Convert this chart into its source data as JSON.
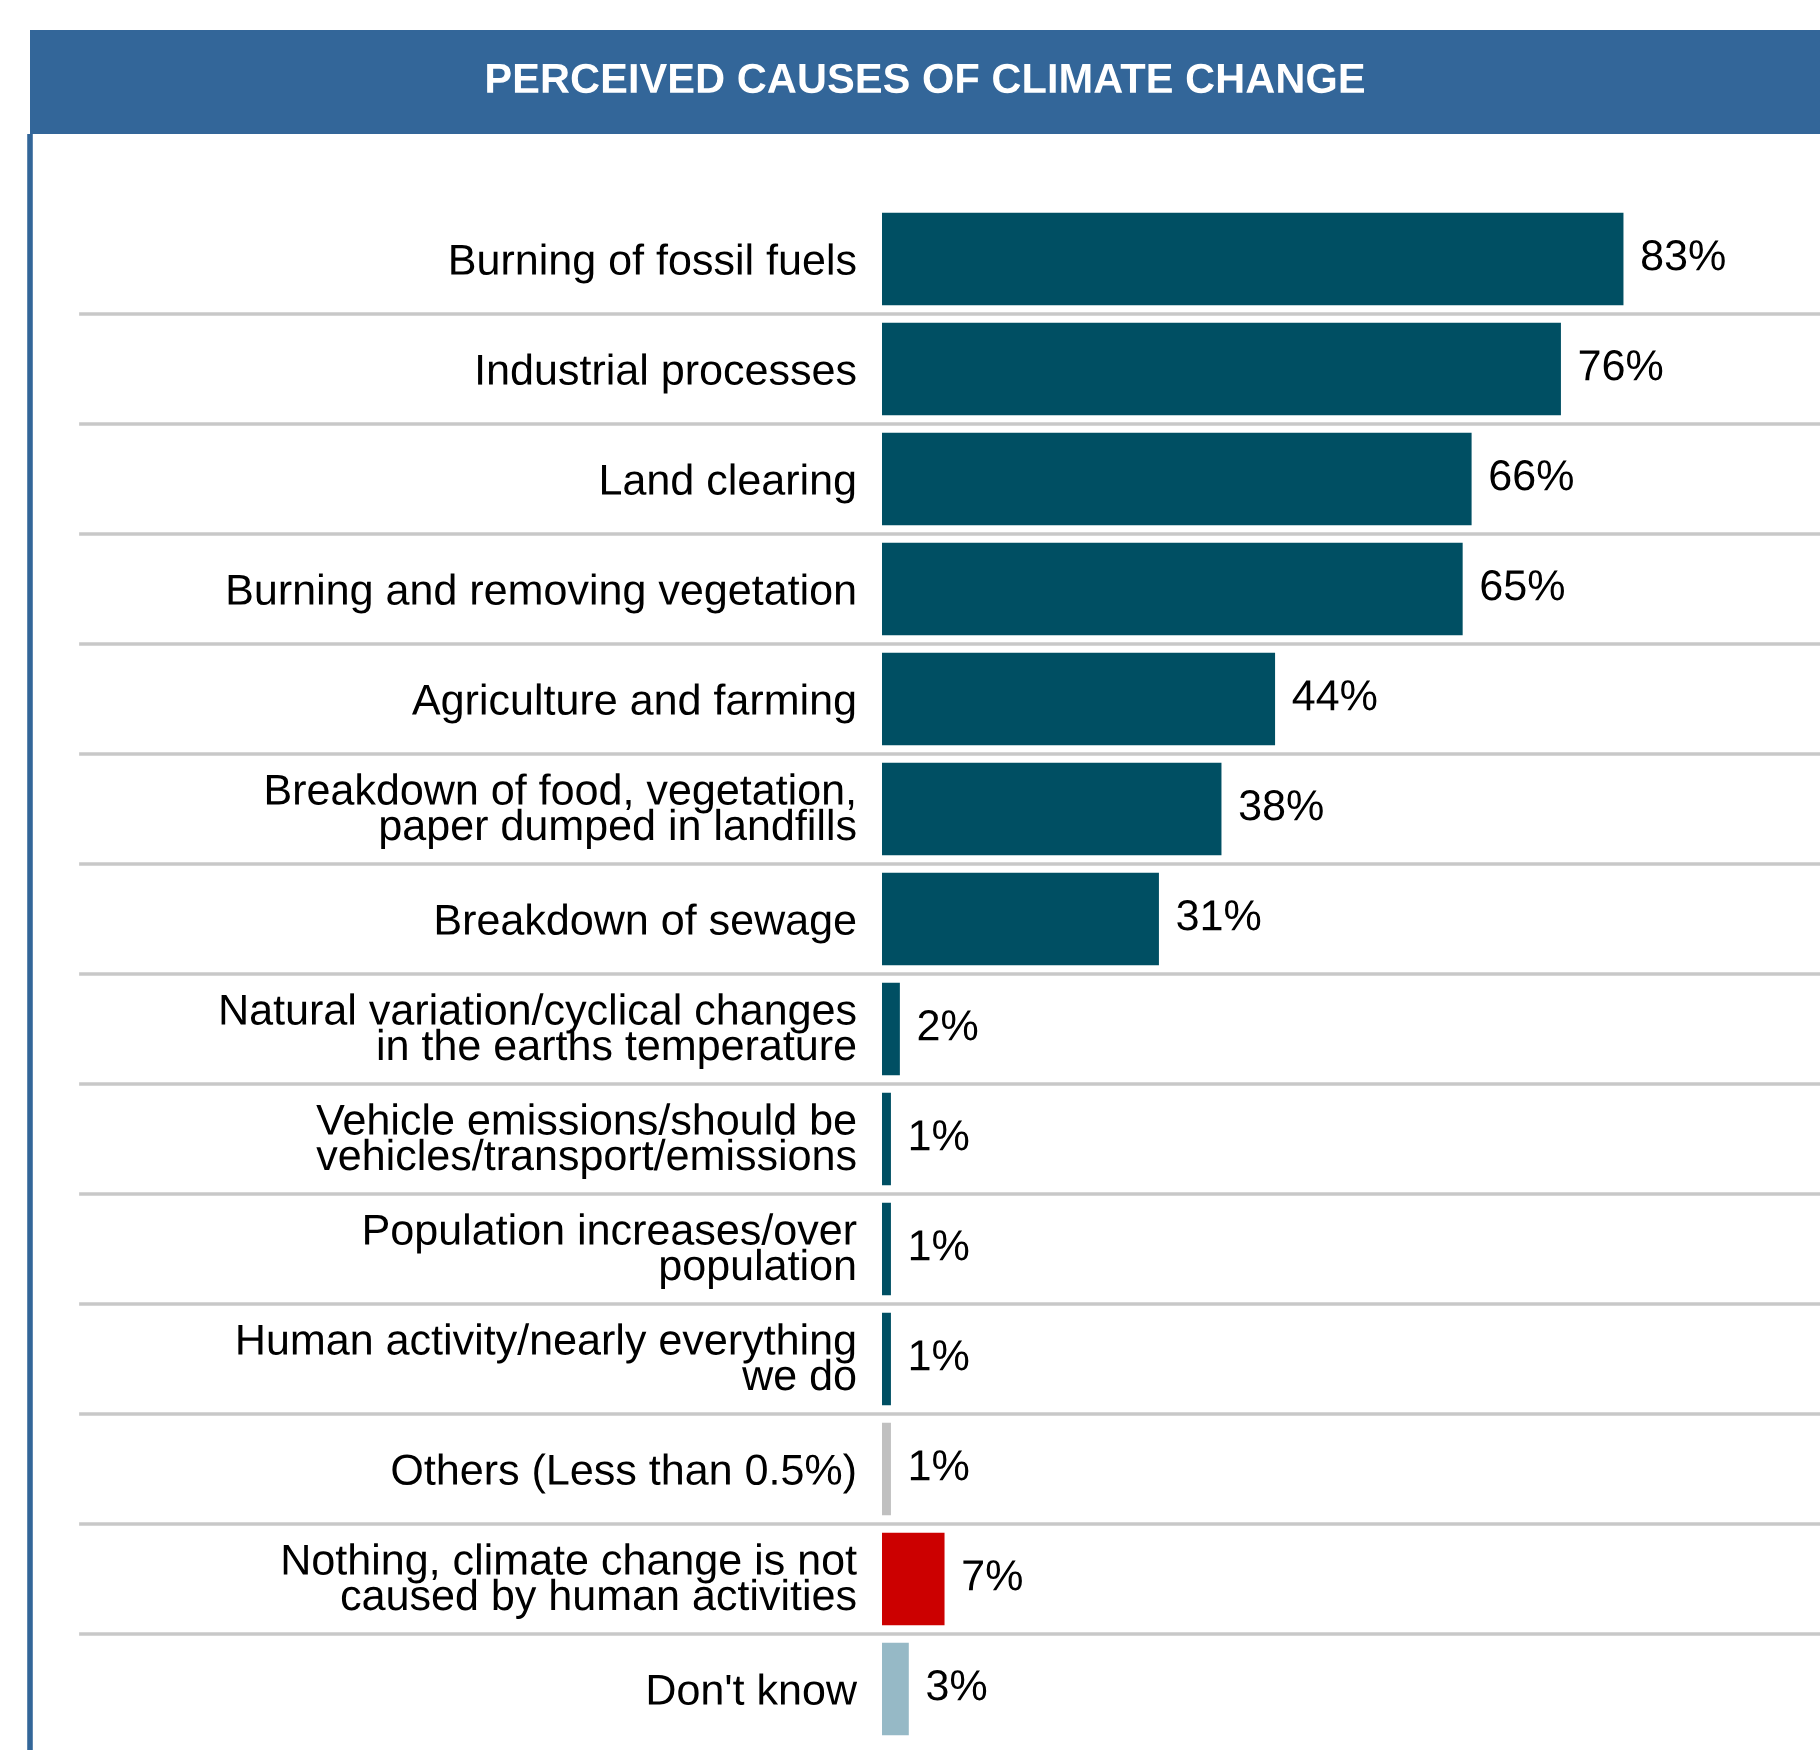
{
  "chart_data": {
    "type": "bar",
    "orientation": "horizontal",
    "title": "PERCEIVED CAUSES OF CLIMATE CHANGE",
    "categories": [
      "Burning of fossil fuels",
      "Industrial processes",
      "Land clearing",
      "Burning and removing vegetation",
      "Agriculture and farming",
      "Breakdown of food, vegetation,\npaper dumped in landfills",
      "Breakdown of sewage",
      "Natural variation/cyclical changes\nin the earths temperature",
      "Vehicle emissions/should be\nvehicles/transport/emissions",
      "Population increases/over\npopulation",
      "Human activity/nearly everything\nwe do",
      "Others (Less than 0.5%)",
      "Nothing, climate change is not\ncaused by human activities",
      "Don't know"
    ],
    "values": [
      83,
      76,
      66,
      65,
      44,
      38,
      31,
      2,
      1,
      1,
      1,
      1,
      7,
      3
    ],
    "value_labels": [
      "83%",
      "76%",
      "66%",
      "65%",
      "44%",
      "38%",
      "31%",
      "2%",
      "1%",
      "1%",
      "1%",
      "1%",
      "7%",
      "3%"
    ],
    "colors": [
      "#004f63",
      "#004f63",
      "#004f63",
      "#004f63",
      "#004f63",
      "#004f63",
      "#004f63",
      "#004f63",
      "#004f63",
      "#004f63",
      "#004f63",
      "#c0c0c0",
      "#cc0000",
      "#96b9c6"
    ],
    "xlim": [
      0,
      105
    ],
    "tick_labels": "y",
    "grid": false,
    "legend": false
  }
}
